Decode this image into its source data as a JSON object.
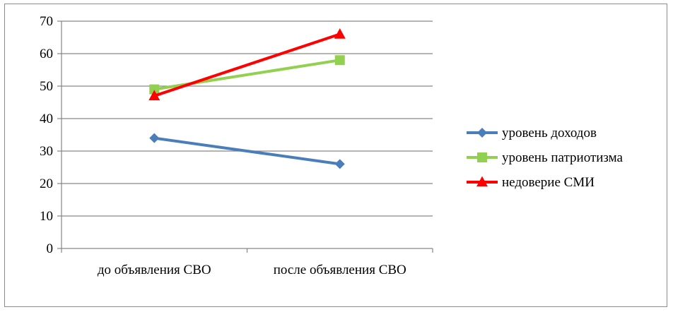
{
  "chart_data": {
    "type": "line",
    "title": "",
    "xlabel": "",
    "ylabel": "",
    "categories": [
      "до объявления СВО",
      "после объявления СВО"
    ],
    "ylim": [
      0,
      70
    ],
    "ytick_step": 10,
    "grid": true,
    "legend_position": "right",
    "series": [
      {
        "name": "уровень доходов",
        "values": [
          34,
          26
        ],
        "color": "#4a7ebb",
        "marker": "diamond"
      },
      {
        "name": "уровень патриотизма",
        "values": [
          49,
          58
        ],
        "color": "#92d050",
        "marker": "square"
      },
      {
        "name": "недоверие СМИ",
        "values": [
          47,
          66
        ],
        "color": "#ff0000",
        "marker": "triangle"
      }
    ]
  }
}
